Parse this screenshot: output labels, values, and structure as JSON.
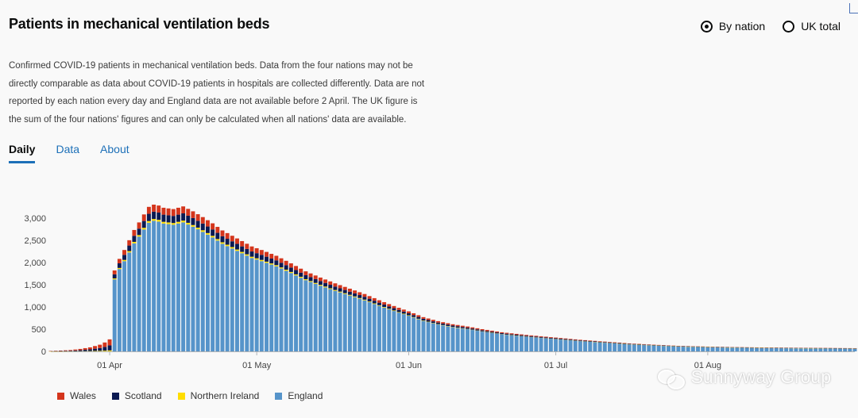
{
  "header": {
    "title": "Patients in mechanical ventilation beds"
  },
  "radios": [
    {
      "label": "By nation",
      "checked": true
    },
    {
      "label": "UK total",
      "checked": false
    }
  ],
  "description": "Confirmed COVID-19 patients in mechanical ventilation beds. Data from the four nations may not be directly comparable as data about COVID-19 patients in hospitals are collected differently. Data are not reported by each nation every day and England data are not available before 2 April. The UK figure is the sum of the four nations' figures and can only be calculated when all nations' data are available.",
  "tabs": [
    {
      "label": "Daily",
      "active": true
    },
    {
      "label": "Data",
      "active": false
    },
    {
      "label": "About",
      "active": false
    }
  ],
  "legend": [
    {
      "label": "Wales",
      "color": "#d4351c"
    },
    {
      "label": "Scotland",
      "color": "#0b1a52"
    },
    {
      "label": "Northern Ireland",
      "color": "#ffdd00"
    },
    {
      "label": "England",
      "color": "#5694ca"
    }
  ],
  "watermark": {
    "text": "Sunnyway Group"
  },
  "chart_data": {
    "type": "bar",
    "stacked": true,
    "title": "",
    "xlabel": "",
    "ylabel": "",
    "ylim": [
      0,
      3300
    ],
    "xlim": [
      "2020-03-20",
      "2020-08-31"
    ],
    "yticks": [
      0,
      500,
      1000,
      1500,
      2000,
      2500,
      3000
    ],
    "ytick_labels": [
      "0",
      "500",
      "1,000",
      "1,500",
      "2,000",
      "2,500",
      "3,000"
    ],
    "xticks": [
      "2020-04-01",
      "2020-05-01",
      "2020-06-01",
      "2020-07-01",
      "2020-08-01"
    ],
    "xtick_labels": [
      "01 Apr",
      "01 May",
      "01 Jun",
      "01 Jul",
      "01 Aug"
    ],
    "grid": false,
    "legend_position": "bottom-left",
    "series_order_bottom_to_top": [
      "England",
      "Northern Ireland",
      "Scotland",
      "Wales"
    ],
    "totals_by_date": [
      [
        "2020-03-20",
        10
      ],
      [
        "2020-03-22",
        18
      ],
      [
        "2020-03-24",
        30
      ],
      [
        "2020-03-26",
        55
      ],
      [
        "2020-03-28",
        90
      ],
      [
        "2020-03-30",
        150
      ],
      [
        "2020-03-31",
        200
      ],
      [
        "2020-04-01",
        270
      ],
      [
        "2020-04-02",
        1820
      ],
      [
        "2020-04-03",
        2080
      ],
      [
        "2020-04-04",
        2280
      ],
      [
        "2020-04-05",
        2500
      ],
      [
        "2020-04-06",
        2730
      ],
      [
        "2020-04-07",
        2900
      ],
      [
        "2020-04-08",
        3080
      ],
      [
        "2020-04-09",
        3250
      ],
      [
        "2020-04-10",
        3300
      ],
      [
        "2020-04-11",
        3280
      ],
      [
        "2020-04-12",
        3230
      ],
      [
        "2020-04-14",
        3200
      ],
      [
        "2020-04-16",
        3260
      ],
      [
        "2020-04-18",
        3150
      ],
      [
        "2020-04-20",
        3020
      ],
      [
        "2020-04-22",
        2880
      ],
      [
        "2020-04-24",
        2720
      ],
      [
        "2020-04-26",
        2600
      ],
      [
        "2020-04-28",
        2480
      ],
      [
        "2020-04-30",
        2360
      ],
      [
        "2020-05-02",
        2280
      ],
      [
        "2020-05-05",
        2150
      ],
      [
        "2020-05-08",
        1980
      ],
      [
        "2020-05-11",
        1800
      ],
      [
        "2020-05-14",
        1660
      ],
      [
        "2020-05-17",
        1530
      ],
      [
        "2020-05-20",
        1410
      ],
      [
        "2020-05-23",
        1290
      ],
      [
        "2020-05-26",
        1150
      ],
      [
        "2020-05-29",
        1020
      ],
      [
        "2020-06-01",
        900
      ],
      [
        "2020-06-04",
        770
      ],
      [
        "2020-06-07",
        680
      ],
      [
        "2020-06-10",
        610
      ],
      [
        "2020-06-13",
        560
      ],
      [
        "2020-06-16",
        500
      ],
      [
        "2020-06-20",
        430
      ],
      [
        "2020-06-25",
        370
      ],
      [
        "2020-07-01",
        310
      ],
      [
        "2020-07-06",
        260
      ],
      [
        "2020-07-11",
        220
      ],
      [
        "2020-07-16",
        180
      ],
      [
        "2020-07-21",
        150
      ],
      [
        "2020-07-26",
        125
      ],
      [
        "2020-08-01",
        108
      ],
      [
        "2020-08-06",
        98
      ],
      [
        "2020-08-11",
        90
      ],
      [
        "2020-08-16",
        84
      ],
      [
        "2020-08-21",
        80
      ],
      [
        "2020-08-26",
        76
      ],
      [
        "2020-08-31",
        72
      ]
    ],
    "series_share": {
      "England": 0.89,
      "Northern Ireland": 0.012,
      "Scotland": 0.05,
      "Wales": 0.048
    },
    "notes": "England data not available before 2 April; earlier bars are Scotland, Wales and Northern Ireland only."
  }
}
